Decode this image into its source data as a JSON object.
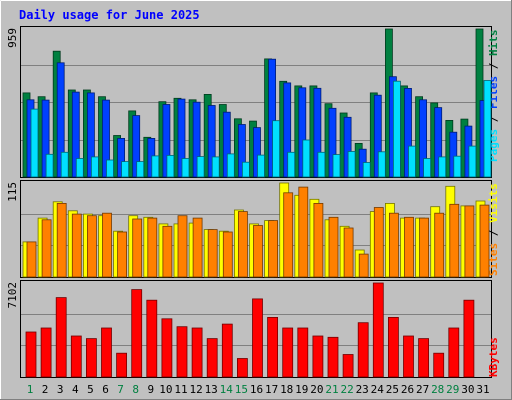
{
  "chart_data": [
    {
      "type": "bar",
      "title": "Daily usage for June 2025",
      "ymax_label": "959",
      "ylabel_parts": [
        "Pages",
        "Files",
        "Hits"
      ],
      "categories": [
        "1",
        "2",
        "3",
        "4",
        "5",
        "6",
        "7",
        "8",
        "9",
        "10",
        "11",
        "12",
        "13",
        "14",
        "15",
        "16",
        "17",
        "18",
        "19",
        "20",
        "21",
        "22",
        "23",
        "24",
        "25",
        "26",
        "27",
        "28",
        "29",
        "30",
        "31"
      ],
      "weekend_days": [
        "1",
        "7",
        "8",
        "14",
        "15",
        "21",
        "22",
        "28",
        "29"
      ],
      "series": [
        {
          "name": "Hits",
          "color": "#008040",
          "values": [
            545,
            520,
            815,
            564,
            564,
            520,
            269,
            428,
            257,
            488,
            510,
            500,
            535,
            470,
            377,
            362,
            765,
            620,
            590,
            590,
            475,
            415,
            218,
            545,
            959,
            590,
            520,
            480,
            367,
            375,
            959
          ]
        },
        {
          "name": "Files",
          "color": "#0040ff",
          "values": [
            500,
            498,
            740,
            550,
            545,
            498,
            250,
            398,
            250,
            470,
            505,
            485,
            463,
            420,
            340,
            320,
            763,
            610,
            578,
            575,
            445,
            387,
            180,
            530,
            650,
            574,
            500,
            450,
            290,
            330,
            495
          ]
        },
        {
          "name": "Pages",
          "color": "#00e0ff",
          "values": [
            440,
            147,
            160,
            120,
            130,
            110,
            100,
            100,
            137,
            140,
            120,
            132,
            130,
            150,
            96,
            142,
            365,
            160,
            240,
            160,
            145,
            165,
            94,
            163,
            621,
            200,
            120,
            130,
            135,
            200,
            625
          ]
        }
      ],
      "ylim": [
        0,
        959
      ]
    },
    {
      "type": "bar",
      "ymax_label": "115",
      "ylabel_parts": [
        "Sites",
        "Visits"
      ],
      "categories": [
        "1",
        "2",
        "3",
        "4",
        "5",
        "6",
        "7",
        "8",
        "9",
        "10",
        "11",
        "12",
        "13",
        "14",
        "15",
        "16",
        "17",
        "18",
        "19",
        "20",
        "21",
        "22",
        "23",
        "24",
        "25",
        "26",
        "27",
        "28",
        "29",
        "30",
        "31"
      ],
      "series": [
        {
          "name": "Visits",
          "color": "#ffff00",
          "values": [
            43,
            72,
            92,
            81,
            77,
            75,
            56,
            75,
            73,
            65,
            65,
            66,
            58,
            56,
            82,
            65,
            69,
            115,
            100,
            95,
            70,
            62,
            33,
            80,
            90,
            72,
            72,
            86,
            111,
            87,
            93
          ]
        },
        {
          "name": "Sites",
          "color": "#ff8000",
          "values": [
            43,
            70,
            90,
            77,
            75,
            78,
            55,
            71,
            72,
            62,
            75,
            72,
            58,
            55,
            80,
            63,
            69,
            103,
            110,
            90,
            73,
            60,
            28,
            85,
            78,
            73,
            72,
            78,
            89,
            87,
            88
          ]
        }
      ],
      "ylim": [
        0,
        115
      ]
    },
    {
      "type": "bar",
      "ymax_label": "7102",
      "ylabel_parts": [
        "KBytes"
      ],
      "categories": [
        "1",
        "2",
        "3",
        "4",
        "5",
        "6",
        "7",
        "8",
        "9",
        "10",
        "11",
        "12",
        "13",
        "14",
        "15",
        "16",
        "17",
        "18",
        "19",
        "20",
        "21",
        "22",
        "23",
        "24",
        "25",
        "26",
        "27",
        "28",
        "29",
        "30",
        "31"
      ],
      "series": [
        {
          "name": "KBytes",
          "color": "#ff0000",
          "values": [
            3400,
            3700,
            6000,
            3100,
            2900,
            3700,
            1800,
            6600,
            5800,
            4400,
            3800,
            3700,
            2900,
            4000,
            1400,
            5900,
            4500,
            3700,
            3700,
            3100,
            3000,
            1700,
            4100,
            7102,
            4500,
            3100,
            2900,
            1800,
            3700,
            5800,
            0
          ]
        }
      ],
      "ylim": [
        0,
        7102
      ]
    }
  ]
}
